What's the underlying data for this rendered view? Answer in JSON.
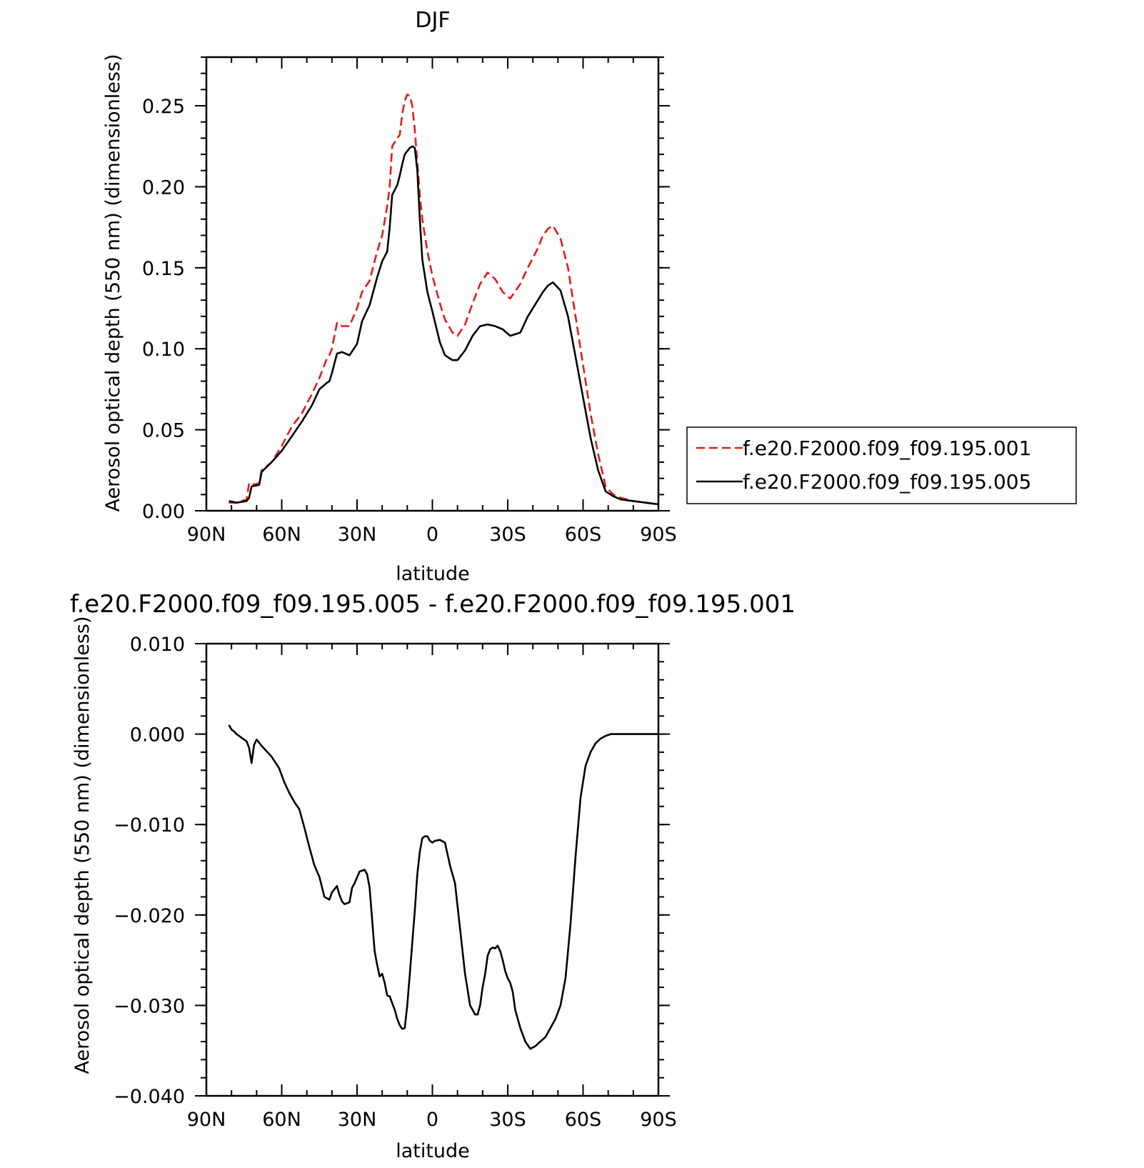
{
  "chart_data": [
    {
      "type": "line",
      "title": "DJF",
      "xlabel": "latitude",
      "ylabel": "Aerosol optical depth (550 nm) (dimensionless)",
      "xlim": [
        90,
        -90
      ],
      "ylim": [
        0,
        0.28
      ],
      "x_tick_values": [
        90,
        60,
        30,
        0,
        -30,
        -60,
        -90
      ],
      "x_tick_labels": [
        "90N",
        "60N",
        "30N",
        "0",
        "30S",
        "60S",
        "90S"
      ],
      "y_tick_values": [
        0,
        0.05,
        0.1,
        0.15,
        0.2,
        0.25
      ],
      "y_tick_labels": [
        "0.00",
        "0.05",
        "0.10",
        "0.15",
        "0.20",
        "0.25"
      ],
      "grid": false,
      "legend": "right",
      "series": [
        {
          "name": "f.e20.F2000.f09_f09.195.001",
          "color": "#e41a1c",
          "dash": "dashed",
          "x": [
            81,
            78,
            74,
            73,
            72,
            69,
            68,
            64,
            60,
            56,
            52,
            48,
            45,
            42,
            41,
            40,
            38,
            36,
            33,
            30,
            28,
            25,
            22,
            20,
            18,
            17,
            16,
            14,
            13,
            12,
            11,
            10,
            9,
            8,
            7,
            6,
            5,
            4,
            2,
            0,
            -3,
            -5,
            -8,
            -10,
            -13,
            -16,
            -19,
            -22,
            -25,
            -28,
            -31,
            -35,
            -38,
            -42,
            -44,
            -46,
            -48,
            -51,
            -54,
            -57,
            -60,
            -63,
            -66,
            -69,
            -72,
            -75,
            -80,
            -85,
            -90
          ],
          "y": [
            0.005,
            0.005,
            0.007,
            0.017,
            0.016,
            0.017,
            0.025,
            0.03,
            0.04,
            0.052,
            0.06,
            0.072,
            0.082,
            0.094,
            0.096,
            0.1,
            0.116,
            0.114,
            0.114,
            0.125,
            0.135,
            0.142,
            0.16,
            0.17,
            0.188,
            0.2,
            0.225,
            0.23,
            0.232,
            0.245,
            0.253,
            0.257,
            0.256,
            0.25,
            0.235,
            0.215,
            0.195,
            0.18,
            0.16,
            0.145,
            0.128,
            0.118,
            0.11,
            0.108,
            0.115,
            0.128,
            0.14,
            0.147,
            0.143,
            0.135,
            0.131,
            0.14,
            0.15,
            0.162,
            0.17,
            0.174,
            0.176,
            0.168,
            0.15,
            0.12,
            0.09,
            0.06,
            0.035,
            0.015,
            0.01,
            0.008,
            0.006,
            0.005,
            0.004
          ]
        },
        {
          "name": "f.e20.F2000.f09_f09.195.005",
          "color": "#000000",
          "dash": "solid",
          "x": [
            81,
            78,
            74,
            73,
            72,
            69,
            68,
            64,
            60,
            56,
            52,
            48,
            45,
            42,
            41,
            40,
            38,
            36,
            33,
            30,
            28,
            25,
            22,
            20,
            18,
            17,
            16,
            14,
            13,
            12,
            11,
            10,
            9,
            8,
            7,
            6,
            5,
            4,
            2,
            0,
            -3,
            -5,
            -8,
            -10,
            -13,
            -16,
            -19,
            -22,
            -25,
            -28,
            -31,
            -35,
            -38,
            -42,
            -44,
            -46,
            -48,
            -51,
            -54,
            -57,
            -60,
            -63,
            -66,
            -69,
            -72,
            -75,
            -80,
            -85,
            -90
          ],
          "y": [
            0.006,
            0.005,
            0.006,
            0.008,
            0.015,
            0.016,
            0.024,
            0.03,
            0.037,
            0.046,
            0.055,
            0.065,
            0.075,
            0.079,
            0.08,
            0.085,
            0.097,
            0.098,
            0.096,
            0.103,
            0.117,
            0.127,
            0.144,
            0.154,
            0.16,
            0.175,
            0.195,
            0.201,
            0.207,
            0.214,
            0.22,
            0.222,
            0.224,
            0.225,
            0.224,
            0.21,
            0.18,
            0.155,
            0.135,
            0.123,
            0.104,
            0.096,
            0.093,
            0.093,
            0.099,
            0.108,
            0.114,
            0.115,
            0.114,
            0.112,
            0.108,
            0.11,
            0.12,
            0.13,
            0.135,
            0.139,
            0.141,
            0.136,
            0.12,
            0.095,
            0.07,
            0.045,
            0.025,
            0.012,
            0.009,
            0.007,
            0.006,
            0.005,
            0.004
          ]
        }
      ]
    },
    {
      "type": "line",
      "title": "f.e20.F2000.f09_f09.195.005 - f.e20.F2000.f09_f09.195.001",
      "xlabel": "latitude",
      "ylabel": "Aerosol optical depth (550 nm) (dimensionless)",
      "xlim": [
        90,
        -90
      ],
      "ylim": [
        -0.04,
        0.01
      ],
      "x_tick_values": [
        90,
        60,
        30,
        0,
        -30,
        -60,
        -90
      ],
      "x_tick_labels": [
        "90N",
        "60N",
        "30N",
        "0",
        "30S",
        "60S",
        "90S"
      ],
      "y_tick_values": [
        0.01,
        0,
        -0.01,
        -0.02,
        -0.03,
        -0.04
      ],
      "y_tick_labels": [
        "0.010",
        "0.000",
        "−0.010",
        "−0.020",
        "−0.030",
        "−0.040"
      ],
      "grid": false,
      "legend": "none",
      "series": [
        {
          "color": "#000000",
          "dash": "solid",
          "x": [
            81,
            80,
            79,
            78,
            76,
            74,
            73,
            72,
            71,
            70,
            68,
            64,
            61,
            59,
            57,
            55,
            53,
            51,
            49,
            47,
            45,
            43,
            41,
            40,
            38,
            37,
            36,
            35,
            33,
            32,
            31,
            29,
            27,
            26,
            25,
            24,
            23,
            22,
            21,
            20,
            19,
            18,
            17,
            15,
            14,
            13,
            12,
            11,
            10,
            9,
            8,
            7,
            6,
            5,
            4,
            3,
            2,
            1,
            0,
            -1,
            -3,
            -5,
            -7,
            -9,
            -11,
            -13,
            -15,
            -17,
            -18,
            -19,
            -20,
            -21,
            -22,
            -23,
            -24,
            -25,
            -26,
            -27,
            -28,
            -29,
            -30,
            -31,
            -32,
            -33,
            -35,
            -37,
            -39,
            -41,
            -43,
            -45,
            -47,
            -49,
            -51,
            -53,
            -55,
            -57,
            -59,
            -61,
            -63,
            -65,
            -67,
            -69,
            -71,
            -73,
            -75,
            -78,
            -82,
            -86,
            -90
          ],
          "y": [
            0.001,
            0.0005,
            0.0003,
            0.0,
            -0.0004,
            -0.0008,
            -0.0015,
            -0.0032,
            -0.0012,
            -0.0006,
            -0.0013,
            -0.0025,
            -0.0038,
            -0.0053,
            -0.0065,
            -0.0075,
            -0.0083,
            -0.0103,
            -0.0125,
            -0.0145,
            -0.0158,
            -0.018,
            -0.0183,
            -0.0175,
            -0.0168,
            -0.0178,
            -0.0185,
            -0.0188,
            -0.0186,
            -0.017,
            -0.0165,
            -0.0152,
            -0.015,
            -0.0155,
            -0.017,
            -0.0205,
            -0.024,
            -0.0255,
            -0.0268,
            -0.0265,
            -0.0275,
            -0.0289,
            -0.029,
            -0.0305,
            -0.0315,
            -0.0322,
            -0.0326,
            -0.0325,
            -0.03,
            -0.0265,
            -0.023,
            -0.0195,
            -0.0155,
            -0.013,
            -0.0115,
            -0.0113,
            -0.0113,
            -0.0118,
            -0.012,
            -0.0118,
            -0.0117,
            -0.012,
            -0.0145,
            -0.0165,
            -0.0215,
            -0.0265,
            -0.03,
            -0.031,
            -0.031,
            -0.03,
            -0.028,
            -0.0265,
            -0.0245,
            -0.0238,
            -0.0236,
            -0.0237,
            -0.0234,
            -0.024,
            -0.025,
            -0.0262,
            -0.027,
            -0.0275,
            -0.0285,
            -0.0305,
            -0.0325,
            -0.034,
            -0.0348,
            -0.0345,
            -0.034,
            -0.0335,
            -0.0325,
            -0.0315,
            -0.03,
            -0.027,
            -0.021,
            -0.0135,
            -0.007,
            -0.0035,
            -0.002,
            -0.001,
            -0.0005,
            -0.0002,
            0.0,
            0.0,
            0.0,
            0.0,
            0.0,
            0.0,
            0.0
          ]
        }
      ]
    }
  ]
}
